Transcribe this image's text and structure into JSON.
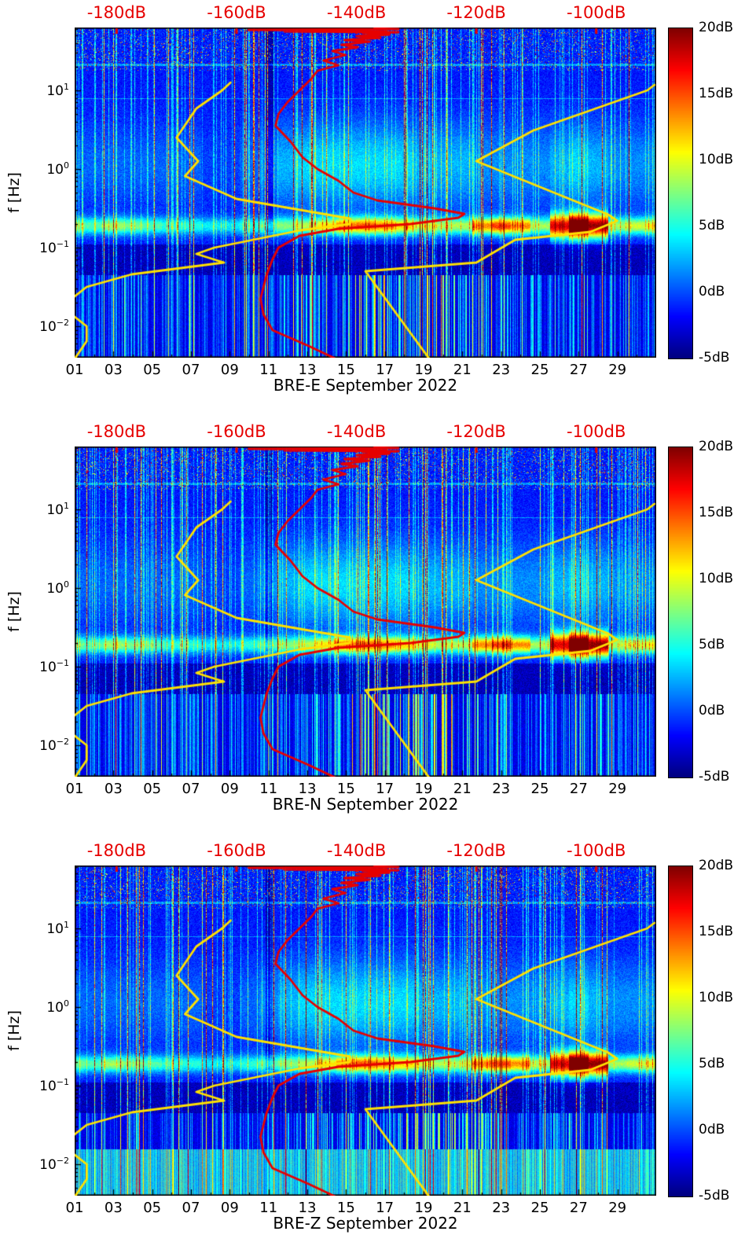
{
  "figure": {
    "background": "#ffffff",
    "colormap": "jet"
  },
  "panels": [
    {
      "name": "BRE-E",
      "xlabel": "BRE-E September 2022",
      "seed": 11,
      "dense_low_stripes": false
    },
    {
      "name": "BRE-N",
      "xlabel": "BRE-N September 2022",
      "seed": 23,
      "dense_low_stripes": false
    },
    {
      "name": "BRE-Z",
      "xlabel": "BRE-Z September 2022",
      "seed": 37,
      "dense_low_stripes": true
    }
  ],
  "axes": {
    "x": {
      "range_days": [
        1,
        31
      ],
      "major_tick_days": [
        1,
        3,
        5,
        7,
        9,
        11,
        13,
        15,
        17,
        19,
        21,
        23,
        25,
        27,
        29
      ],
      "tick_labels": [
        "01",
        "03",
        "05",
        "07",
        "09",
        "11",
        "13",
        "15",
        "17",
        "19",
        "21",
        "23",
        "25",
        "27",
        "29"
      ]
    },
    "y": {
      "label": "f [Hz]",
      "scale": "log",
      "log10_range": [
        -2.4,
        1.8
      ],
      "tick_base": "10",
      "tick_exponents": [
        1,
        0,
        -1,
        -2
      ]
    },
    "top": {
      "color": "#e60000",
      "db_range": [
        -187,
        -90
      ],
      "tick_values": [
        -180,
        -160,
        -140,
        -120,
        -100
      ],
      "tick_labels": [
        "-180dB",
        "-160dB",
        "-140dB",
        "-120dB",
        "-100dB"
      ]
    },
    "colorbar": {
      "db_range": [
        -5,
        20
      ],
      "tick_values": [
        20,
        15,
        10,
        5,
        0,
        -5
      ],
      "tick_labels": [
        "20dB",
        "15dB",
        "10dB",
        "5dB",
        "0dB",
        "-5dB"
      ]
    }
  },
  "chart_data": {
    "type": "heatmap",
    "panels": [
      "BRE-E",
      "BRE-N",
      "BRE-Z"
    ],
    "month": "September 2022",
    "day_range": [
      1,
      31
    ],
    "frequency_range_hz": [
      0.004,
      63
    ],
    "value_units": "dB",
    "value_range_db": [
      -5,
      20
    ],
    "top_axis_units": "dB",
    "top_axis_range_db": [
      -187,
      -90
    ],
    "texture": {
      "band_center_logf": -0.72,
      "band_amp_by_day": [
        6,
        5,
        7,
        6,
        5,
        4,
        4,
        3,
        3,
        4,
        5,
        6,
        7,
        9,
        12,
        13,
        12,
        10,
        8,
        7,
        7,
        12,
        14,
        12,
        7,
        16,
        24,
        18,
        7,
        8,
        9
      ],
      "cloud_amp_by_day": [
        2,
        2,
        2,
        2,
        2,
        2,
        2,
        1,
        1,
        2,
        3,
        4,
        5,
        5,
        5,
        5,
        5,
        5,
        4,
        4,
        4,
        3,
        3,
        3,
        3,
        4,
        5,
        4,
        3,
        3,
        3
      ],
      "low_stripe_amp_by_day": [
        3,
        4,
        4,
        5,
        3,
        3,
        4,
        3,
        3,
        3,
        4,
        5,
        6,
        6,
        8,
        9,
        9,
        8,
        9,
        9,
        8,
        6,
        5,
        4,
        4,
        5,
        6,
        5,
        4,
        3,
        3
      ],
      "spike_density": 0.05,
      "mild_density": 0.15
    },
    "overlays": {
      "red_median_spectrum": {
        "color": "#e60000",
        "points_db_logf": [
          [
            -143,
            -2.43
          ],
          [
            -148,
            -2.25
          ],
          [
            -154,
            -2.05
          ],
          [
            -155.5,
            -1.85
          ],
          [
            -156,
            -1.65
          ],
          [
            -155,
            -1.35
          ],
          [
            -154,
            -1.15
          ],
          [
            -153,
            -1.0
          ],
          [
            -149.5,
            -0.85
          ],
          [
            -143,
            -0.76
          ],
          [
            -131,
            -0.7
          ],
          [
            -123,
            -0.62
          ],
          [
            -122,
            -0.57
          ],
          [
            -127,
            -0.5
          ],
          [
            -136.5,
            -0.4
          ],
          [
            -140.5,
            -0.3
          ],
          [
            -143,
            -0.15
          ],
          [
            -146.5,
            0
          ],
          [
            -149,
            0.15
          ],
          [
            -151,
            0.35
          ],
          [
            -153.5,
            0.55
          ],
          [
            -153,
            0.7
          ],
          [
            -151.5,
            0.85
          ],
          [
            -149.5,
            1.0
          ],
          [
            -147.5,
            1.15
          ],
          [
            -146.5,
            1.25
          ],
          [
            -143,
            1.32
          ],
          [
            -145.5,
            1.38
          ],
          [
            -141.8,
            1.45
          ],
          [
            -144,
            1.5
          ],
          [
            -139.8,
            1.55
          ],
          [
            -142.5,
            1.58
          ],
          [
            -137.8,
            1.62
          ],
          [
            -142,
            1.64
          ],
          [
            -136,
            1.67
          ],
          [
            -140,
            1.69
          ],
          [
            -134.5,
            1.71
          ],
          [
            -139,
            1.73
          ],
          [
            -133,
            1.74
          ],
          [
            -152,
            1.75
          ],
          [
            -135,
            1.76
          ],
          [
            -158,
            1.77
          ],
          [
            -133,
            1.78
          ],
          [
            -137,
            1.79
          ]
        ]
      },
      "yellow_low_noise": {
        "color": "#ffe100",
        "points_db_logf": [
          [
            -161,
            1.1
          ],
          [
            -162.4,
            1.0
          ],
          [
            -166.7,
            0.77
          ],
          [
            -170,
            0.4
          ],
          [
            -166.4,
            0.1
          ],
          [
            -168.6,
            -0.09
          ],
          [
            -160,
            -0.38
          ],
          [
            -141.1,
            -0.63
          ],
          [
            -141.1,
            -0.7
          ],
          [
            -149.4,
            -0.78
          ],
          [
            -163.7,
            -1.0
          ],
          [
            -166.7,
            -1.08
          ],
          [
            -162.1,
            -1.19
          ],
          [
            -177.5,
            -1.34
          ],
          [
            -185,
            -1.5
          ],
          [
            -187.5,
            -1.65
          ],
          [
            -187.5,
            -1.85
          ],
          [
            -185,
            -2.0
          ],
          [
            -185,
            -2.19
          ],
          [
            -187.5,
            -2.47
          ]
        ]
      },
      "yellow_high_noise": {
        "color": "#ffe100",
        "points_db_logf": [
          [
            -90.3,
            1.07
          ],
          [
            -91.5,
            1.0
          ],
          [
            -110.5,
            0.49
          ],
          [
            -120,
            0.1
          ],
          [
            -98,
            -0.58
          ],
          [
            -96.5,
            -0.66
          ],
          [
            -101,
            -0.8
          ],
          [
            -113.5,
            -0.9
          ],
          [
            -120,
            -1.19
          ],
          [
            -138.5,
            -1.3
          ],
          [
            -127.5,
            -2.45
          ]
        ]
      }
    }
  }
}
